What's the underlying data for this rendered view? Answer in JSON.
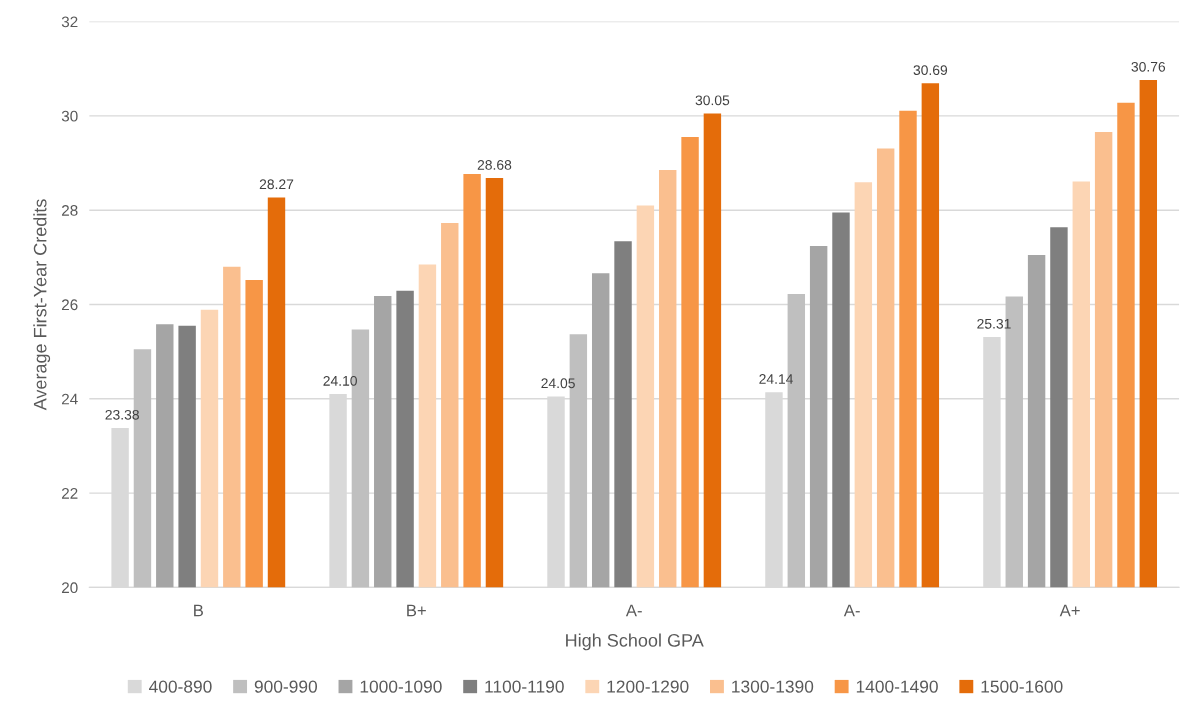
{
  "chart_data": {
    "type": "bar",
    "xlabel": "High School GPA",
    "ylabel": "Average First-Year Credits",
    "categories": [
      "B",
      "B+",
      "A-",
      "A-",
      "A+"
    ],
    "ylim": [
      20,
      32
    ],
    "yticks": [
      20,
      22,
      24,
      26,
      28,
      30,
      32
    ],
    "grid": "y",
    "legend": "bottom",
    "series": [
      {
        "name": "400-890",
        "color": "#d9d9d9",
        "values": [
          23.38,
          24.1,
          24.05,
          24.14,
          25.31
        ],
        "value_labels": [
          "23.38",
          "24.10",
          "24.05",
          "24.14",
          "25.31"
        ]
      },
      {
        "name": "900-990",
        "color": "#bfbfbf",
        "values": [
          25.05,
          25.47,
          25.37,
          26.22,
          26.17
        ]
      },
      {
        "name": "1000-1090",
        "color": "#a5a5a5",
        "values": [
          25.58,
          26.18,
          26.66,
          27.24,
          27.05
        ]
      },
      {
        "name": "1100-1190",
        "color": "#7f7f7f",
        "values": [
          25.55,
          26.29,
          27.34,
          27.95,
          27.64
        ]
      },
      {
        "name": "1200-1290",
        "color": "#fcd5b4",
        "values": [
          25.89,
          26.85,
          28.1,
          28.59,
          28.61
        ]
      },
      {
        "name": "1300-1390",
        "color": "#fabf8f",
        "values": [
          26.8,
          27.73,
          28.85,
          29.31,
          29.66
        ]
      },
      {
        "name": "1400-1490",
        "color": "#f79646",
        "values": [
          26.52,
          28.77,
          29.55,
          30.11,
          30.28
        ]
      },
      {
        "name": "1500-1600",
        "color": "#e46c0a",
        "values": [
          28.27,
          28.68,
          30.05,
          30.69,
          30.76
        ],
        "value_labels": [
          "28.27",
          "28.68",
          "30.05",
          "30.69",
          "30.76"
        ]
      }
    ]
  }
}
